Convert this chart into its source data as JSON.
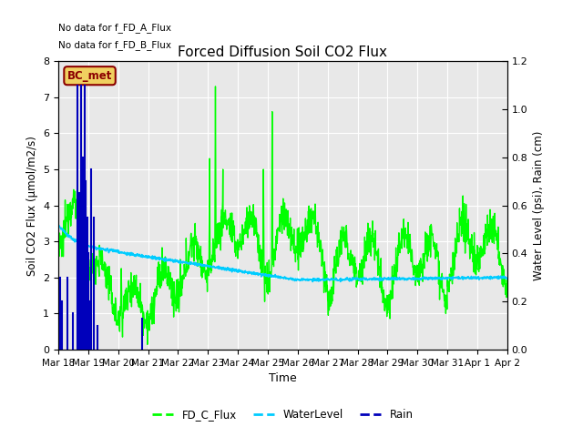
{
  "title": "Forced Diffusion Soil CO2 Flux",
  "xlabel": "Time",
  "ylabel_left": "Soil CO2 Flux (μmol/m2/s)",
  "ylabel_right": "Water Level (psi), Rain (cm)",
  "text_no_data_1": "No data for f_FD_A_Flux",
  "text_no_data_2": "No data for f_FD_B_Flux",
  "text_bc_met": "BC_met",
  "ylim_left": [
    0.0,
    8.0
  ],
  "ylim_right": [
    0.0,
    1.2
  ],
  "yticks_left": [
    0.0,
    1.0,
    2.0,
    3.0,
    4.0,
    5.0,
    6.0,
    7.0,
    8.0
  ],
  "yticks_right": [
    0.0,
    0.2,
    0.4,
    0.6,
    0.8,
    1.0,
    1.2
  ],
  "axes_facecolor": "#e8e8e8",
  "fig_facecolor": "#ffffff",
  "color_flux": "#00ff00",
  "color_water": "#00ccff",
  "color_rain": "#0000bb",
  "lw_flux": 1.0,
  "lw_water": 1.2,
  "lw_rain": 1.5
}
